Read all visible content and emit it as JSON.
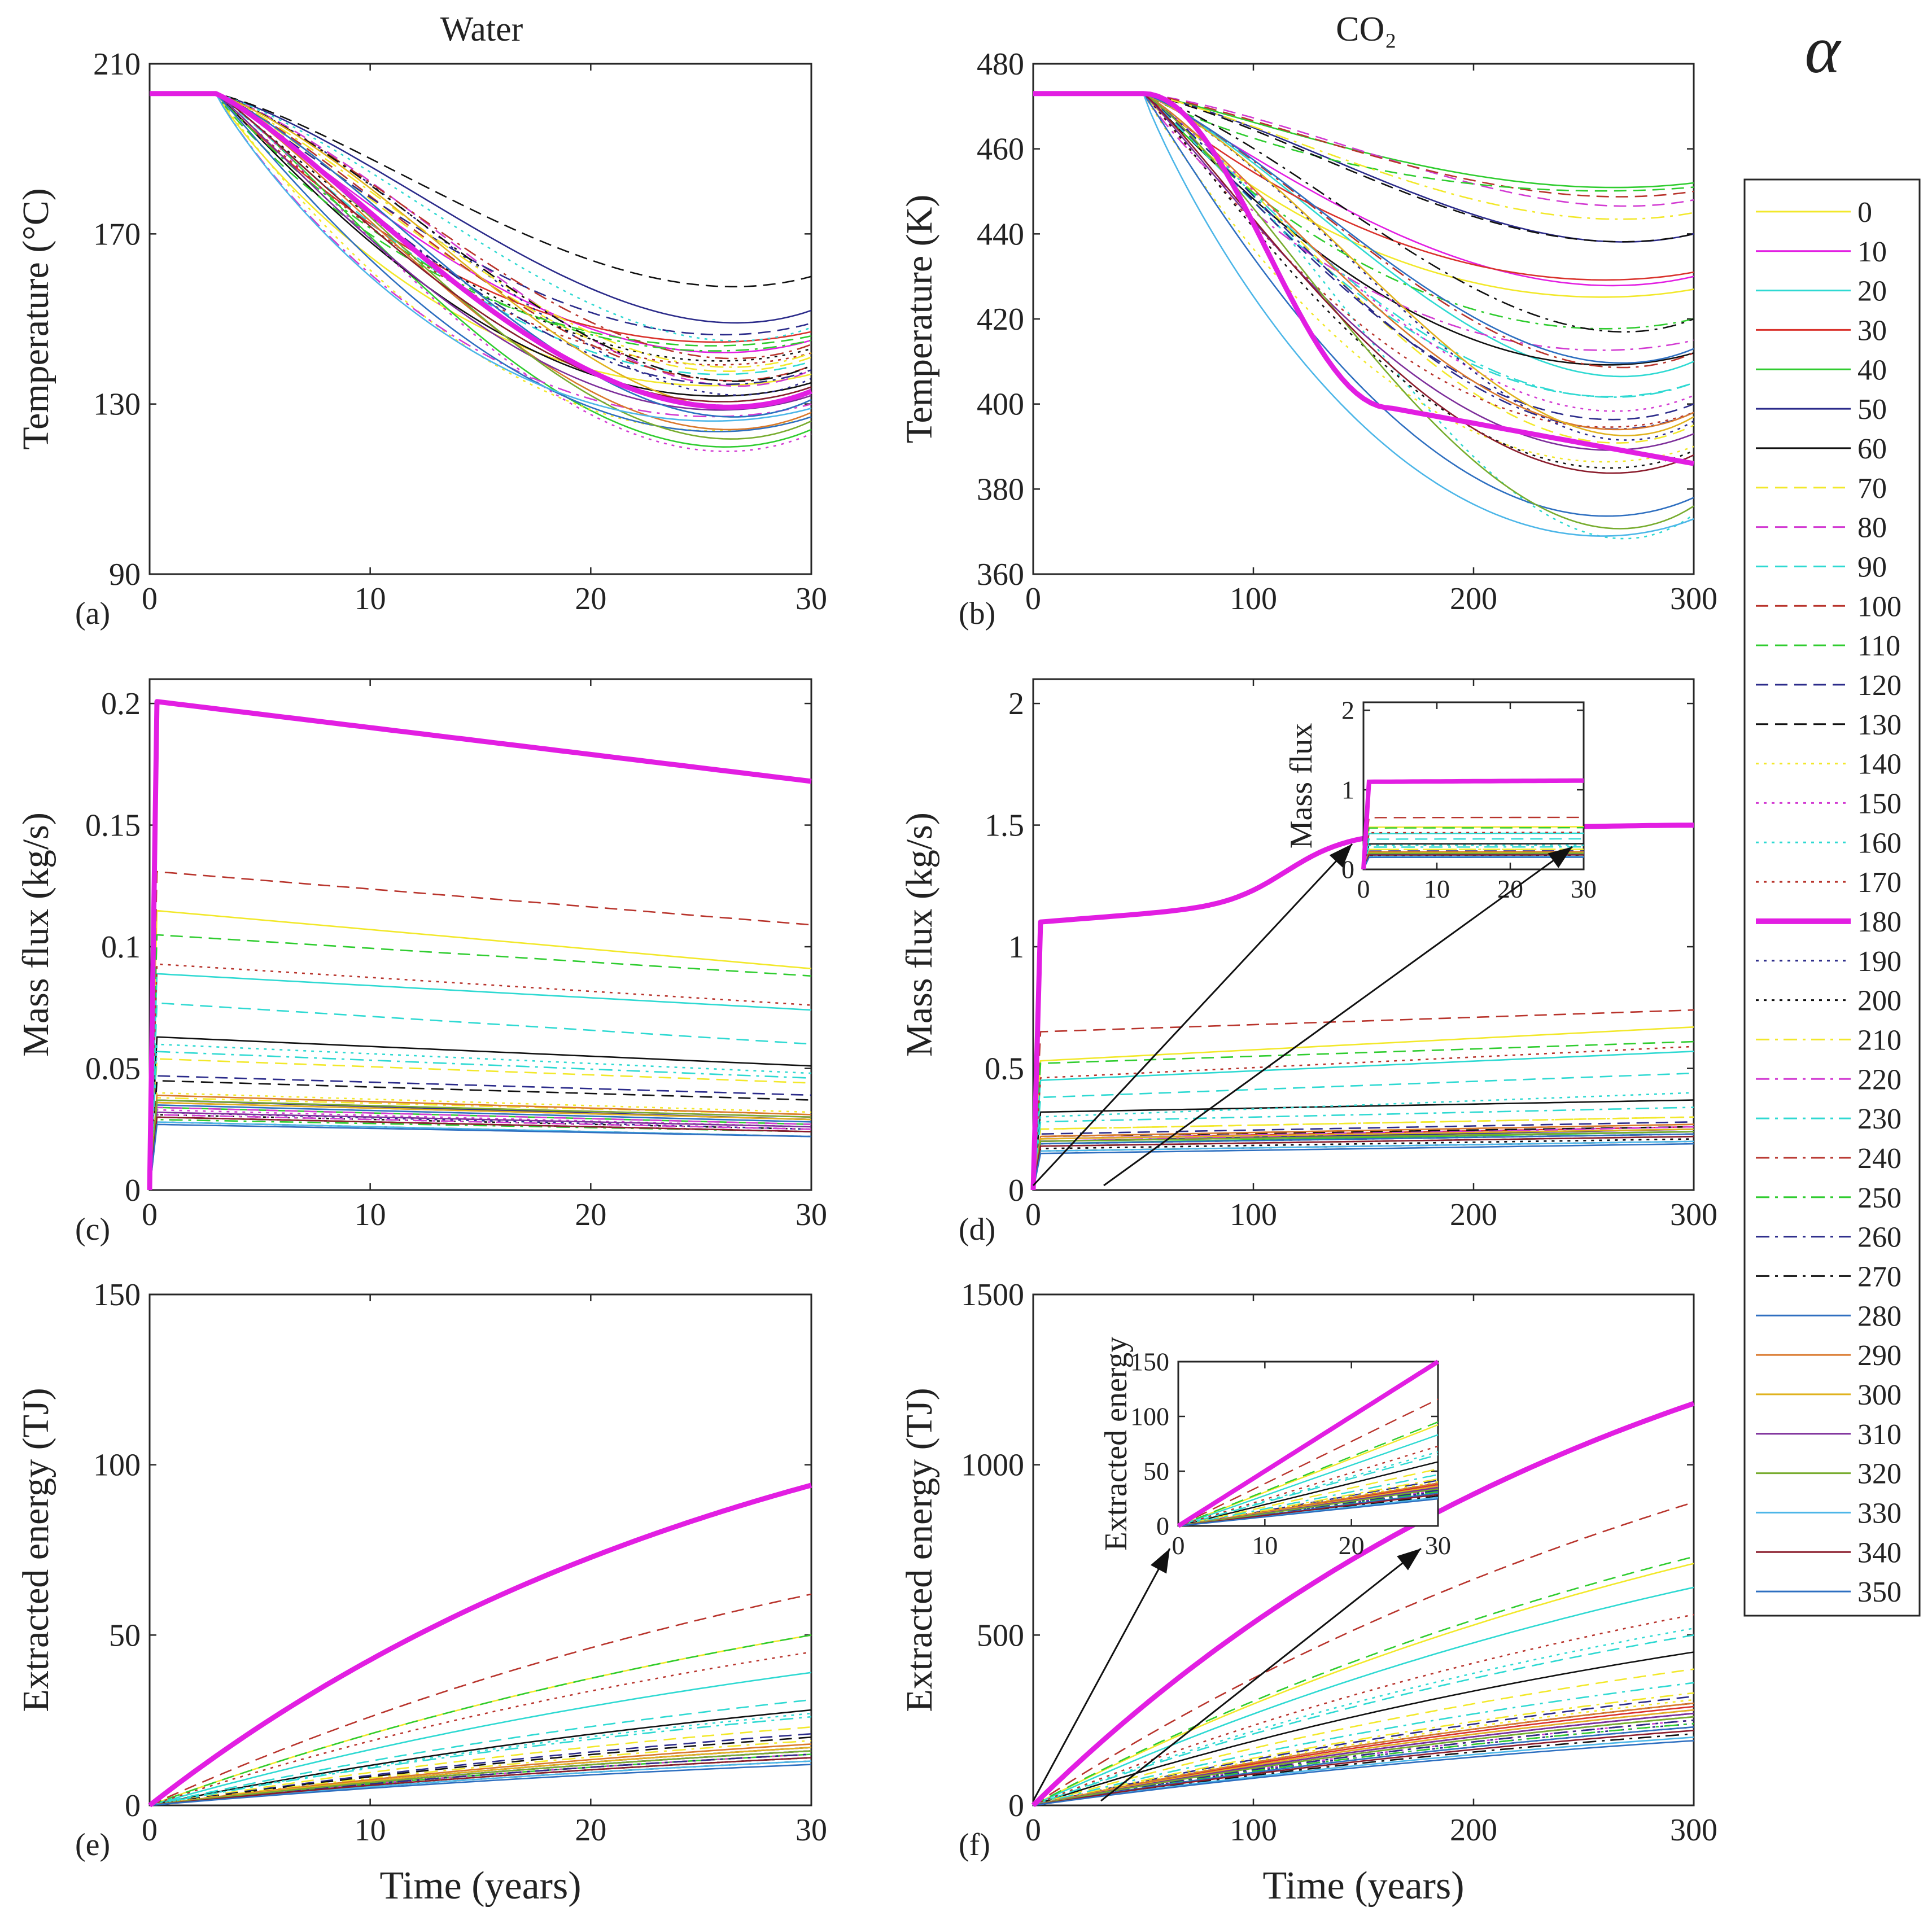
{
  "figure": {
    "col_titles": [
      "Water",
      "CO₂"
    ],
    "alpha_symbol": "α",
    "xlabel": "Time (years)"
  },
  "legend": {
    "title": "α",
    "entries": [
      {
        "label": "0",
        "color": "#f2e82a",
        "dash": "solid"
      },
      {
        "label": "10",
        "color": "#e21ee2",
        "dash": "solid"
      },
      {
        "label": "20",
        "color": "#2ed9d2",
        "dash": "solid"
      },
      {
        "label": "30",
        "color": "#d9322c",
        "dash": "solid"
      },
      {
        "label": "40",
        "color": "#2fcc2f",
        "dash": "solid"
      },
      {
        "label": "50",
        "color": "#2b2b8a",
        "dash": "solid"
      },
      {
        "label": "60",
        "color": "#111111",
        "dash": "solid"
      },
      {
        "label": "70",
        "color": "#f2e82a",
        "dash": "dash"
      },
      {
        "label": "80",
        "color": "#d23bd2",
        "dash": "dash"
      },
      {
        "label": "90",
        "color": "#2ed9d2",
        "dash": "dash"
      },
      {
        "label": "100",
        "color": "#b8342c",
        "dash": "dash"
      },
      {
        "label": "110",
        "color": "#2fcc2f",
        "dash": "dash"
      },
      {
        "label": "120",
        "color": "#2b2b8a",
        "dash": "dash"
      },
      {
        "label": "130",
        "color": "#111111",
        "dash": "dash"
      },
      {
        "label": "140",
        "color": "#f2e82a",
        "dash": "dot"
      },
      {
        "label": "150",
        "color": "#d23bd2",
        "dash": "dot"
      },
      {
        "label": "160",
        "color": "#2ed9d2",
        "dash": "dot"
      },
      {
        "label": "170",
        "color": "#b8342c",
        "dash": "dot"
      },
      {
        "label": "180",
        "color": "#e21ee2",
        "dash": "thick"
      },
      {
        "label": "190",
        "color": "#2b2b8a",
        "dash": "dot"
      },
      {
        "label": "200",
        "color": "#111111",
        "dash": "dot"
      },
      {
        "label": "210",
        "color": "#f2e82a",
        "dash": "dashdot"
      },
      {
        "label": "220",
        "color": "#d23bd2",
        "dash": "dashdot"
      },
      {
        "label": "230",
        "color": "#2ed9d2",
        "dash": "dashdot"
      },
      {
        "label": "240",
        "color": "#b8342c",
        "dash": "dashdot"
      },
      {
        "label": "250",
        "color": "#2fcc2f",
        "dash": "dashdot"
      },
      {
        "label": "260",
        "color": "#2b2b8a",
        "dash": "dashdot"
      },
      {
        "label": "270",
        "color": "#111111",
        "dash": "dashdot"
      },
      {
        "label": "280",
        "color": "#2e6fc0",
        "dash": "solid"
      },
      {
        "label": "290",
        "color": "#d9782c",
        "dash": "solid"
      },
      {
        "label": "300",
        "color": "#e0b21e",
        "dash": "solid"
      },
      {
        "label": "310",
        "color": "#7d2e9a",
        "dash": "solid"
      },
      {
        "label": "320",
        "color": "#77ac2e",
        "dash": "solid"
      },
      {
        "label": "330",
        "color": "#4cb6e8",
        "dash": "solid"
      },
      {
        "label": "340",
        "color": "#8a1c2c",
        "dash": "solid"
      },
      {
        "label": "350",
        "color": "#2e6fc0",
        "dash": "solid"
      }
    ]
  },
  "chart_data": [
    {
      "id": "a",
      "panel_label": "(a)",
      "type": "line",
      "title": "Water",
      "xlabel": "",
      "ylabel": "Temperature (°C)",
      "xlim": [
        0,
        30
      ],
      "ylim": [
        90,
        210
      ],
      "xticks": [
        0,
        10,
        20,
        30
      ],
      "yticks": [
        90,
        130,
        170,
        210
      ],
      "xtick_labels": [
        "0",
        "10",
        "20",
        "30"
      ],
      "ytick_labels": [
        "90",
        "130",
        "170",
        "210"
      ],
      "initial": 203,
      "plateau_until": 3,
      "shape": "decline",
      "final_values_by_alpha": [
        137,
        145,
        131,
        147,
        124,
        152,
        135,
        141,
        138,
        140,
        139,
        146,
        149,
        160,
        127,
        123,
        148,
        142,
        133,
        136,
        143,
        142,
        130,
        134,
        144,
        145,
        138,
        139,
        127,
        128,
        133,
        132,
        126,
        129,
        134,
        131
      ]
    },
    {
      "id": "b",
      "panel_label": "(b)",
      "type": "line",
      "title": "CO₂",
      "xlabel": "",
      "ylabel": "Temperature (K)",
      "xlim": [
        0,
        300
      ],
      "ylim": [
        360,
        480
      ],
      "xticks": [
        0,
        100,
        200,
        300
      ],
      "yticks": [
        360,
        380,
        400,
        420,
        440,
        460,
        480
      ],
      "xtick_labels": [
        "0",
        "100",
        "200",
        "300"
      ],
      "ytick_labels": [
        "360",
        "380",
        "400",
        "420",
        "440",
        "460",
        "480"
      ],
      "initial": 473,
      "plateau_until": 50,
      "shape": "decline",
      "final_values_by_alpha": [
        427,
        430,
        410,
        431,
        452,
        440,
        412,
        395,
        448,
        405,
        450,
        451,
        400,
        440,
        390,
        402,
        374,
        398,
        386,
        396,
        389,
        445,
        415,
        405,
        412,
        420,
        398,
        420,
        378,
        398,
        397,
        393,
        376,
        373,
        388,
        413
      ]
    },
    {
      "id": "c",
      "panel_label": "(c)",
      "type": "line",
      "title": "",
      "xlabel": "",
      "ylabel": "Mass flux (kg/s)",
      "xlim": [
        0,
        30
      ],
      "ylim": [
        0,
        0.21
      ],
      "xticks": [
        0,
        10,
        20,
        30
      ],
      "yticks": [
        0,
        0.05,
        0.1,
        0.15,
        0.2
      ],
      "xtick_labels": [
        "0",
        "10",
        "20",
        "30"
      ],
      "ytick_labels": [
        "0",
        "0.05",
        "0.1",
        "0.15",
        "0.2"
      ],
      "shape": "flux_decline",
      "initial_values_by_alpha": [
        0.115,
        0.037,
        0.089,
        0.036,
        0.034,
        0.037,
        0.063,
        0.054,
        0.034,
        0.077,
        0.131,
        0.105,
        0.047,
        0.045,
        0.04,
        0.033,
        0.06,
        0.093,
        0.201,
        0.032,
        0.031,
        0.038,
        0.031,
        0.057,
        0.03,
        0.029,
        0.03,
        0.028,
        0.035,
        0.039,
        0.036,
        0.032,
        0.037,
        0.028,
        0.03,
        0.027
      ],
      "final_values_by_alpha": [
        0.091,
        0.03,
        0.074,
        0.029,
        0.027,
        0.029,
        0.051,
        0.044,
        0.027,
        0.06,
        0.109,
        0.088,
        0.039,
        0.037,
        0.032,
        0.026,
        0.048,
        0.076,
        0.168,
        0.025,
        0.025,
        0.031,
        0.025,
        0.046,
        0.024,
        0.024,
        0.024,
        0.022,
        0.028,
        0.031,
        0.029,
        0.026,
        0.03,
        0.022,
        0.024,
        0.022
      ]
    },
    {
      "id": "d",
      "panel_label": "(d)",
      "type": "line",
      "title": "",
      "xlabel": "",
      "ylabel": "Mass flux (kg/s)",
      "xlim": [
        0,
        300
      ],
      "ylim": [
        0,
        2.1
      ],
      "xticks": [
        0,
        100,
        200,
        300
      ],
      "yticks": [
        0,
        0.5,
        1,
        1.5,
        2
      ],
      "xtick_labels": [
        "0",
        "100",
        "200",
        "300"
      ],
      "ytick_labels": [
        "0",
        "0.5",
        "1",
        "1.5",
        "2"
      ],
      "shape": "flux_rise",
      "initial_values_by_alpha": [
        0.53,
        0.2,
        0.45,
        0.21,
        0.19,
        0.2,
        0.32,
        0.25,
        0.21,
        0.38,
        0.65,
        0.52,
        0.23,
        0.22,
        0.22,
        0.18,
        0.3,
        0.46,
        1.1,
        0.17,
        0.17,
        0.25,
        0.2,
        0.28,
        0.19,
        0.18,
        0.19,
        0.16,
        0.19,
        0.22,
        0.21,
        0.2,
        0.2,
        0.16,
        0.18,
        0.15
      ],
      "final_values_by_alpha": [
        0.67,
        0.25,
        0.57,
        0.26,
        0.24,
        0.25,
        0.37,
        0.3,
        0.26,
        0.48,
        0.74,
        0.61,
        0.28,
        0.26,
        0.27,
        0.22,
        0.4,
        0.59,
        1.5,
        0.21,
        0.21,
        0.3,
        0.26,
        0.34,
        0.23,
        0.22,
        0.23,
        0.2,
        0.23,
        0.27,
        0.25,
        0.24,
        0.24,
        0.2,
        0.22,
        0.19
      ],
      "inset": {
        "ylabel": "Mass flux",
        "xlim": [
          0,
          30
        ],
        "ylim": [
          0,
          2.1
        ],
        "xticks": [
          0,
          10,
          20,
          30
        ],
        "yticks": [
          0,
          1,
          2
        ],
        "xtick_labels": [
          "0",
          "10",
          "20",
          "30"
        ],
        "ytick_labels": [
          "0",
          "1",
          "2"
        ]
      }
    },
    {
      "id": "e",
      "panel_label": "(e)",
      "type": "line",
      "title": "",
      "xlabel": "Time (years)",
      "ylabel": "Extracted energy (TJ)",
      "xlim": [
        0,
        30
      ],
      "ylim": [
        0,
        150
      ],
      "xticks": [
        0,
        10,
        20,
        30
      ],
      "yticks": [
        0,
        50,
        100,
        150
      ],
      "xtick_labels": [
        "0",
        "10",
        "20",
        "30"
      ],
      "ytick_labels": [
        "0",
        "50",
        "100",
        "150"
      ],
      "shape": "accumulate",
      "final_values_by_alpha": [
        50,
        16,
        39,
        17,
        15,
        17,
        28,
        23,
        16,
        31,
        62,
        50,
        21,
        20,
        18,
        15,
        27,
        45,
        94,
        14,
        14,
        19,
        15,
        26,
        15,
        14,
        15,
        13,
        16,
        18,
        17,
        16,
        16,
        13,
        14,
        12
      ]
    },
    {
      "id": "f",
      "panel_label": "(f)",
      "type": "line",
      "title": "",
      "xlabel": "Time (years)",
      "ylabel": "Extracted energy (TJ)",
      "xlim": [
        0,
        300
      ],
      "ylim": [
        0,
        1500
      ],
      "xticks": [
        0,
        100,
        200,
        300
      ],
      "yticks": [
        0,
        500,
        1000,
        1500
      ],
      "xtick_labels": [
        "0",
        "100",
        "200",
        "300"
      ],
      "ytick_labels": [
        "0",
        "500",
        "1000",
        "1500"
      ],
      "shape": "accumulate",
      "final_values_by_alpha": [
        710,
        280,
        640,
        290,
        260,
        270,
        450,
        400,
        300,
        500,
        890,
        730,
        320,
        300,
        310,
        250,
        520,
        560,
        1180,
        240,
        230,
        330,
        260,
        360,
        250,
        240,
        250,
        210,
        230,
        300,
        280,
        270,
        260,
        200,
        220,
        190
      ],
      "inset": {
        "ylabel": "Extracted energy",
        "xlim": [
          0,
          30
        ],
        "ylim": [
          0,
          150
        ],
        "xticks": [
          0,
          10,
          20,
          30
        ],
        "yticks": [
          0,
          50,
          100,
          150
        ],
        "xtick_labels": [
          "0",
          "10",
          "20",
          "30"
        ],
        "ytick_labels": [
          "0",
          "50",
          "100",
          "150"
        ]
      }
    }
  ]
}
